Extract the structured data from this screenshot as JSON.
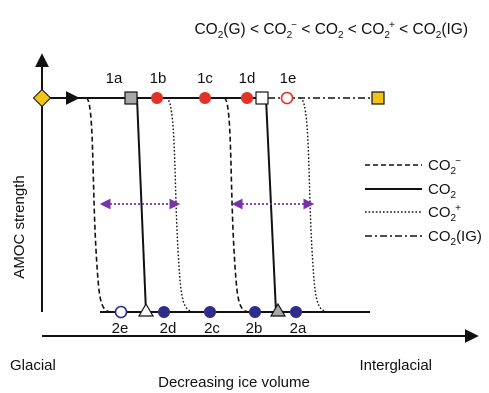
{
  "ordering": {
    "terms": [
      {
        "base": "CO",
        "sub": "2",
        "sup": "",
        "suffix": "(G)"
      },
      {
        "base": "CO",
        "sub": "2",
        "sup": "−",
        "suffix": ""
      },
      {
        "base": "CO",
        "sub": "2",
        "sup": "",
        "suffix": ""
      },
      {
        "base": "CO",
        "sub": "2",
        "sup": "+",
        "suffix": ""
      },
      {
        "base": "CO",
        "sub": "2",
        "sup": "",
        "suffix": "(IG)"
      }
    ],
    "separator": "<"
  },
  "axes": {
    "ylabel": "AMOC strength",
    "xlabel": "Decreasing ice volume",
    "x_left": "Glacial",
    "x_right": "Interglacial"
  },
  "legend": [
    {
      "id": "co2-minus",
      "style": "dashed",
      "base": "CO",
      "sub": "2",
      "sup": "−",
      "suffix": ""
    },
    {
      "id": "co2",
      "style": "solid",
      "base": "CO",
      "sub": "2",
      "sup": "",
      "suffix": ""
    },
    {
      "id": "co2-plus",
      "style": "dotted",
      "base": "CO",
      "sub": "2",
      "sup": "+",
      "suffix": ""
    },
    {
      "id": "co2-ig",
      "style": "dashdot",
      "base": "CO",
      "sub": "2",
      "sup": "",
      "suffix": "(IG)"
    }
  ],
  "upper_points": [
    "1a",
    "1b",
    "1c",
    "1d",
    "1e"
  ],
  "lower_points": [
    "2e",
    "2d",
    "2c",
    "2b",
    "2a"
  ],
  "colors": {
    "red": "#e23228",
    "blue": "#2e2d8c",
    "gray": "#a8a8a8",
    "yellow": "#f2c318",
    "purple": "#7b2fa8",
    "line": "#111111"
  }
}
